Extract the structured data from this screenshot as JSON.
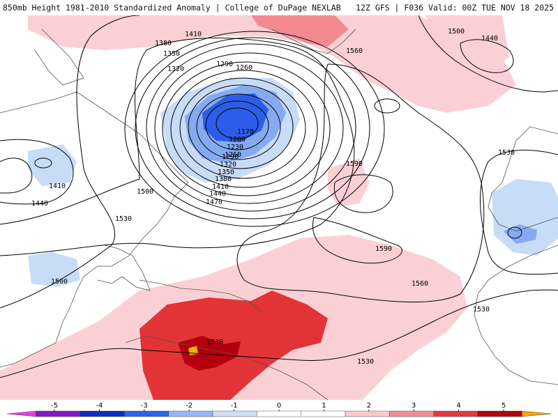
{
  "title": {
    "left": "850mb Height 1981-2010 Standardized Anomaly | College of DuPage NEXLAB",
    "right": "12Z GFS | F036 Valid: 00Z TUE NOV 18 2025"
  },
  "contour_labels": [
    "1410",
    "1380",
    "1350",
    "1320",
    "1290",
    "1260",
    "1170",
    "1200",
    "1230",
    "1260",
    "1290",
    "1320",
    "1350",
    "1380",
    "1410",
    "1440",
    "1470",
    "1500",
    "1530",
    "1440",
    "1410",
    "1500",
    "1560",
    "1500",
    "1440",
    "1590",
    "1590",
    "1560",
    "1530",
    "1530",
    "1530",
    "1530"
  ],
  "colorbar": {
    "ticks": [
      "-5",
      "-4",
      "-3",
      "-2",
      "-1",
      "0",
      "1",
      "2",
      "3",
      "4",
      "5"
    ],
    "colors": [
      "#e040e0",
      "#8a16c8",
      "#0b2fbf",
      "#2e62ea",
      "#93b8f5",
      "#cfe0fb",
      "#ffffff",
      "#ffffff",
      "#fbc9cf",
      "#f48b93",
      "#e33a3d",
      "#b5000d",
      "#f2a600"
    ]
  },
  "colors": {
    "neg1": "#c7dcf7",
    "neg2": "#86aaf0",
    "neg3": "#2d5de8",
    "pos1": "#fbd0d5",
    "pos2": "#f38a92",
    "pos3": "#e23436",
    "pos4": "#b3000c",
    "pos5": "#f3b000"
  }
}
